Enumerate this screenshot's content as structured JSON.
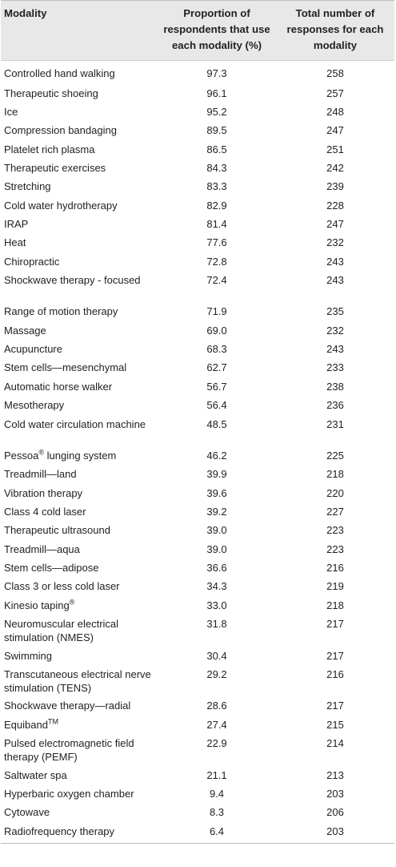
{
  "table": {
    "headers": {
      "modality": "Modality",
      "proportion": "Proportion of respondents that use each modality (%)",
      "total": "Total number of responses for each modality"
    },
    "rows": [
      {
        "name": "Controlled hand walking",
        "sup": "",
        "suffix": "",
        "pct": "97.3",
        "n": "258"
      },
      {
        "name": "Therapeutic shoeing",
        "sup": "",
        "suffix": "",
        "pct": "96.1",
        "n": "257"
      },
      {
        "name": "Ice",
        "sup": "",
        "suffix": "",
        "pct": "95.2",
        "n": "248"
      },
      {
        "name": "Compression bandaging",
        "sup": "",
        "suffix": "",
        "pct": "89.5",
        "n": "247"
      },
      {
        "name": "Platelet rich plasma",
        "sup": "",
        "suffix": "",
        "pct": "86.5",
        "n": "251"
      },
      {
        "name": "Therapeutic exercises",
        "sup": "",
        "suffix": "",
        "pct": "84.3",
        "n": "242"
      },
      {
        "name": "Stretching",
        "sup": "",
        "suffix": "",
        "pct": "83.3",
        "n": "239"
      },
      {
        "name": "Cold water hydrotherapy",
        "sup": "",
        "suffix": "",
        "pct": "82.9",
        "n": "228"
      },
      {
        "name": "IRAP",
        "sup": "",
        "suffix": "",
        "pct": "81.4",
        "n": "247"
      },
      {
        "name": "Heat",
        "sup": "",
        "suffix": "",
        "pct": "77.6",
        "n": "232"
      },
      {
        "name": "Chiropractic",
        "sup": "",
        "suffix": "",
        "pct": "72.8",
        "n": "243"
      },
      {
        "name": "Shockwave therapy - focused",
        "sup": "",
        "suffix": "",
        "pct": "72.4",
        "n": "243",
        "tall": true
      },
      {
        "name": "Range of motion therapy",
        "sup": "",
        "suffix": "",
        "pct": "71.9",
        "n": "235"
      },
      {
        "name": "Massage",
        "sup": "",
        "suffix": "",
        "pct": "69.0",
        "n": "232"
      },
      {
        "name": "Acupuncture",
        "sup": "",
        "suffix": "",
        "pct": "68.3",
        "n": "243"
      },
      {
        "name": "Stem cells—mesenchymal",
        "sup": "",
        "suffix": "",
        "pct": "62.7",
        "n": "233"
      },
      {
        "name": "Automatic horse walker",
        "sup": "",
        "suffix": "",
        "pct": "56.7",
        "n": "238"
      },
      {
        "name": "Mesotherapy",
        "sup": "",
        "suffix": "",
        "pct": "56.4",
        "n": "236"
      },
      {
        "name": "Cold water circulation machine",
        "sup": "",
        "suffix": "",
        "pct": "48.5",
        "n": "231",
        "tall": true
      },
      {
        "name": "Pessoa",
        "sup": "®",
        "suffix": " lunging system",
        "pct": "46.2",
        "n": "225"
      },
      {
        "name": "Treadmill—land",
        "sup": "",
        "suffix": "",
        "pct": "39.9",
        "n": "218"
      },
      {
        "name": "Vibration therapy",
        "sup": "",
        "suffix": "",
        "pct": "39.6",
        "n": "220"
      },
      {
        "name": "Class 4 cold laser",
        "sup": "",
        "suffix": "",
        "pct": "39.2",
        "n": "227"
      },
      {
        "name": "Therapeutic ultrasound",
        "sup": "",
        "suffix": "",
        "pct": "39.0",
        "n": "223"
      },
      {
        "name": "Treadmill—aqua",
        "sup": "",
        "suffix": "",
        "pct": "39.0",
        "n": "223"
      },
      {
        "name": "Stem cells—adipose",
        "sup": "",
        "suffix": "",
        "pct": "36.6",
        "n": "216"
      },
      {
        "name": "Class 3 or less cold laser",
        "sup": "",
        "suffix": "",
        "pct": "34.3",
        "n": "219"
      },
      {
        "name": "Kinesio taping",
        "sup": "®",
        "suffix": "",
        "pct": "33.0",
        "n": "218"
      },
      {
        "name": "Neuromuscular electrical stimulation (NMES)",
        "sup": "",
        "suffix": "",
        "pct": "31.8",
        "n": "217",
        "tall": true
      },
      {
        "name": "Swimming",
        "sup": "",
        "suffix": "",
        "pct": "30.4",
        "n": "217"
      },
      {
        "name": "Transcutaneous electrical nerve stimulation (TENS)",
        "sup": "",
        "suffix": "",
        "pct": "29.2",
        "n": "216",
        "tall": true
      },
      {
        "name": "Shockwave therapy—radial",
        "sup": "",
        "suffix": "",
        "pct": "28.6",
        "n": "217"
      },
      {
        "name": "Equiband",
        "sup": "TM",
        "suffix": "",
        "pct": "27.4",
        "n": "215"
      },
      {
        "name": "Pulsed electromagnetic field therapy (PEMF)",
        "sup": "",
        "suffix": "",
        "pct": "22.9",
        "n": "214",
        "tall": true
      },
      {
        "name": "Saltwater spa",
        "sup": "",
        "suffix": "",
        "pct": "21.1",
        "n": "213"
      },
      {
        "name": "Hyperbaric oxygen chamber",
        "sup": "",
        "suffix": "",
        "pct": "9.4",
        "n": "203"
      },
      {
        "name": "Cytowave",
        "sup": "",
        "suffix": "",
        "pct": "8.3",
        "n": "206"
      },
      {
        "name": "Radiofrequency therapy",
        "sup": "",
        "suffix": "",
        "pct": "6.4",
        "n": "203"
      }
    ]
  }
}
